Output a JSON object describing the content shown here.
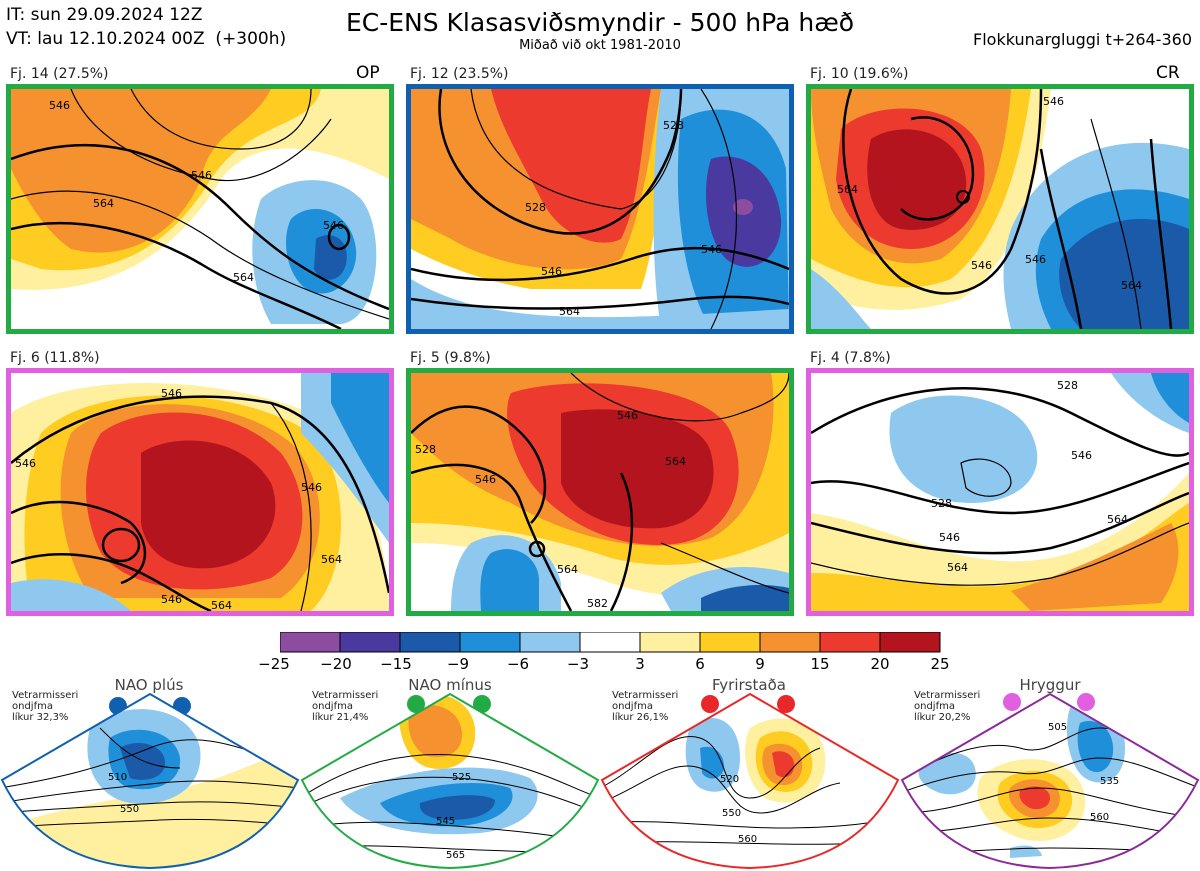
{
  "header": {
    "it_line": "IT: sun 29.09.2024 12Z",
    "vt_line": "VT: lau 12.10.2024 00Z  (+300h)",
    "title": "EC-ENS Klasasviðsmyndir - 500 hPa hæð",
    "subtitle": "Miðað við okt 1981-2010",
    "window": "Flokkunargluggi t+264-360"
  },
  "panels": [
    {
      "label": "Fj. 14 (27.5%)",
      "tag": "OP",
      "border": "#22aa44",
      "contours": [
        "564",
        "546",
        "546",
        "564",
        "546"
      ]
    },
    {
      "label": "Fj. 12 (23.5%)",
      "tag": "",
      "border": "#1060b0",
      "contours": [
        "528",
        "546",
        "546",
        "564",
        "528"
      ]
    },
    {
      "label": "Fj. 10 (19.6%)",
      "tag": "CR",
      "border": "#22aa44",
      "contours": [
        "564",
        "546",
        "546",
        "564",
        "546"
      ]
    },
    {
      "label": "Fj. 6 (11.8%)",
      "tag": "",
      "border": "#e060e0",
      "contours": [
        "546",
        "546",
        "546",
        "564",
        "564",
        "546"
      ]
    },
    {
      "label": "Fj. 5 (9.8%)",
      "tag": "",
      "border": "#22aa44",
      "contours": [
        "528",
        "546",
        "546",
        "564",
        "564",
        "582"
      ]
    },
    {
      "label": "Fj. 4 (7.8%)",
      "tag": "",
      "border": "#e060e0",
      "contours": [
        "528",
        "528",
        "546",
        "546",
        "564",
        "564"
      ]
    }
  ],
  "colorbar": {
    "ticks": [
      "−25",
      "−20",
      "−15",
      "−9",
      "−6",
      "−3",
      "3",
      "6",
      "9",
      "15",
      "20",
      "25"
    ],
    "colors": [
      "#8c4ca0",
      "#4a3aa0",
      "#1a5aa8",
      "#1e8fd8",
      "#8ec8ef",
      "#ffffff",
      "#fff0a0",
      "#ffcc22",
      "#f5912e",
      "#ec3a2e",
      "#b4141e"
    ]
  },
  "regimes": [
    {
      "name": "NAO plús",
      "info": [
        "Vetrarmisseri",
        "ondjfma",
        "líkur 32,3%"
      ],
      "border": "#1060b0",
      "dot": "#1060b0",
      "contours": [
        "510",
        "550"
      ]
    },
    {
      "name": "NAO mínus",
      "info": [
        "Vetrarmisseri",
        "ondjfma",
        "líkur 21,4%"
      ],
      "border": "#22aa44",
      "dot": "#22aa44",
      "contours": [
        "525",
        "545",
        "565"
      ]
    },
    {
      "name": "Fyrirstaða",
      "info": [
        "Vetrarmisseri",
        "ondjfma",
        "líkur 26,1%"
      ],
      "border": "#e82828",
      "dot": "#e82828",
      "contours": [
        "520",
        "550",
        "560"
      ]
    },
    {
      "name": "Hryggur",
      "info": [
        "Vetrarmisseri",
        "ondjfma",
        "líkur 20,2%"
      ],
      "border": "#8a2a9a",
      "dot": "#e060e0",
      "contours": [
        "505",
        "535",
        "560"
      ]
    }
  ],
  "icons": {
    "regime_marker": "dot-icon"
  }
}
